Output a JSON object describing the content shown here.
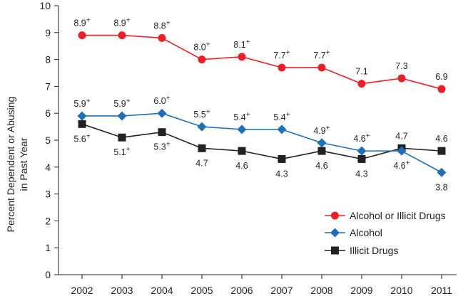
{
  "chart_data": {
    "type": "line",
    "categories": [
      "2002",
      "2003",
      "2004",
      "2005",
      "2006",
      "2007",
      "2008",
      "2009",
      "2010",
      "2011"
    ],
    "ylabel_lines": [
      "Percent Dependent or Abusing",
      "in Past Year"
    ],
    "ylim": [
      0,
      10
    ],
    "yticks": [
      "0",
      "1",
      "2",
      "3",
      "4",
      "5",
      "6",
      "7",
      "8",
      "9",
      "10"
    ],
    "grid": false,
    "legend_position": "bottom-right",
    "series": [
      {
        "name": "Alcohol or Illicit Drugs",
        "color": "#e8202a",
        "marker": "circle",
        "values": [
          8.9,
          8.9,
          8.8,
          8.0,
          8.1,
          7.7,
          7.7,
          7.1,
          7.3,
          6.9
        ],
        "labels": [
          "8.9",
          "8.9",
          "8.8",
          "8.0",
          "8.1",
          "7.7",
          "7.7",
          "7.1",
          "7.3",
          "6.9"
        ],
        "label_sups": [
          "+",
          "+",
          "+",
          "+",
          "+",
          "+",
          "+",
          "",
          "",
          ""
        ],
        "label_side": [
          "above",
          "above",
          "above",
          "above",
          "above",
          "above",
          "above",
          "above",
          "above",
          "above"
        ]
      },
      {
        "name": "Alcohol",
        "color": "#1f6fb8",
        "marker": "diamond",
        "values": [
          5.9,
          5.9,
          6.0,
          5.5,
          5.4,
          5.4,
          4.9,
          4.6,
          4.6,
          3.8
        ],
        "labels": [
          "5.9",
          "5.9",
          "6.0",
          "5.5",
          "5.4",
          "5.4",
          "4.9",
          "4.6",
          "4.6",
          "3.8"
        ],
        "label_sups": [
          "+",
          "+",
          "+",
          "+",
          "+",
          "+",
          "+",
          "+",
          "+",
          ""
        ],
        "label_side": [
          "above",
          "above",
          "above",
          "above",
          "above",
          "above",
          "above",
          "above",
          "below",
          "below"
        ]
      },
      {
        "name": "Illicit Drugs",
        "color": "#222222",
        "marker": "square",
        "values": [
          5.6,
          5.1,
          5.3,
          4.7,
          4.6,
          4.3,
          4.6,
          4.3,
          4.7,
          4.6
        ],
        "labels": [
          "5.6",
          "5.1",
          "5.3",
          "4.7",
          "4.6",
          "4.3",
          "4.6",
          "4.3",
          "4.7",
          "4.6"
        ],
        "label_sups": [
          "+",
          "+",
          "+",
          "",
          "",
          "",
          "",
          "",
          "",
          ""
        ],
        "label_side": [
          "below",
          "below",
          "below",
          "below",
          "below",
          "below",
          "below",
          "below",
          "above",
          "above"
        ]
      }
    ]
  }
}
